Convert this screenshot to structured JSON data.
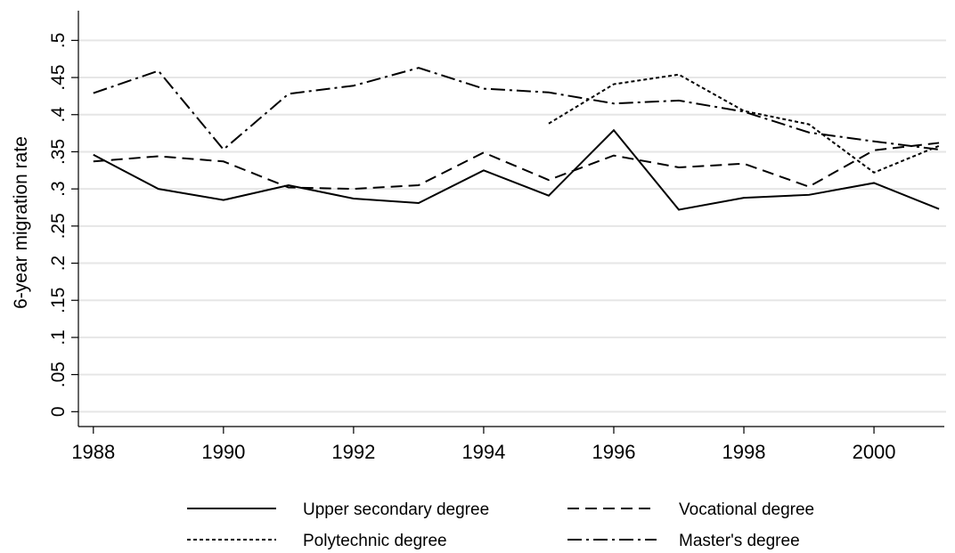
{
  "chart_data": {
    "type": "line",
    "y_label": "6-year migration rate",
    "x": [
      1988,
      1989,
      1990,
      1991,
      1992,
      1993,
      1994,
      1995,
      1996,
      1997,
      1998,
      1999,
      2000,
      2001
    ],
    "xlim": [
      1987.77,
      2001.04
    ],
    "xticks": [
      1988,
      1990,
      1992,
      1994,
      1996,
      1998,
      2000
    ],
    "ylim": [
      -0.02,
      0.54
    ],
    "yticks": [
      0,
      {
        "value": 0.05,
        "label": ".05"
      },
      {
        "value": 0.1,
        "label": ".1"
      },
      {
        "value": 0.15,
        "label": ".15"
      },
      {
        "value": 0.2,
        "label": ".2"
      },
      {
        "value": 0.25,
        "label": ".25"
      },
      {
        "value": 0.3,
        "label": ".3"
      },
      {
        "value": 0.35,
        "label": ".35"
      },
      {
        "value": 0.4,
        "label": ".4"
      },
      {
        "value": 0.45,
        "label": ".45"
      },
      {
        "value": 0.5,
        "label": ".5"
      }
    ],
    "grid": true,
    "series": [
      {
        "name": "Upper secondary degree",
        "color": "#000000",
        "dash": "solid",
        "values": [
          0.346,
          0.3,
          0.285,
          0.305,
          0.287,
          0.281,
          0.325,
          0.291,
          0.379,
          0.272,
          0.288,
          0.292,
          0.308,
          0.273
        ]
      },
      {
        "name": "Vocational degree",
        "color": "#000000",
        "dash": "dashed",
        "values": [
          0.337,
          0.344,
          0.337,
          0.302,
          0.3,
          0.305,
          0.349,
          0.312,
          0.345,
          0.329,
          0.334,
          0.303,
          0.352,
          0.362
        ]
      },
      {
        "name": "Polytechnic degree",
        "color": "#000000",
        "dash": "dotted",
        "values": [
          null,
          null,
          null,
          null,
          null,
          null,
          null,
          0.388,
          0.441,
          0.454,
          0.405,
          0.387,
          0.322,
          0.358
        ]
      },
      {
        "name": "Master's degree",
        "color": "#000000",
        "dash": "dashdot",
        "values": [
          0.429,
          0.459,
          0.353,
          0.428,
          0.439,
          0.463,
          0.435,
          0.43,
          0.415,
          0.419,
          0.404,
          0.376,
          0.364,
          0.353
        ]
      }
    ]
  }
}
